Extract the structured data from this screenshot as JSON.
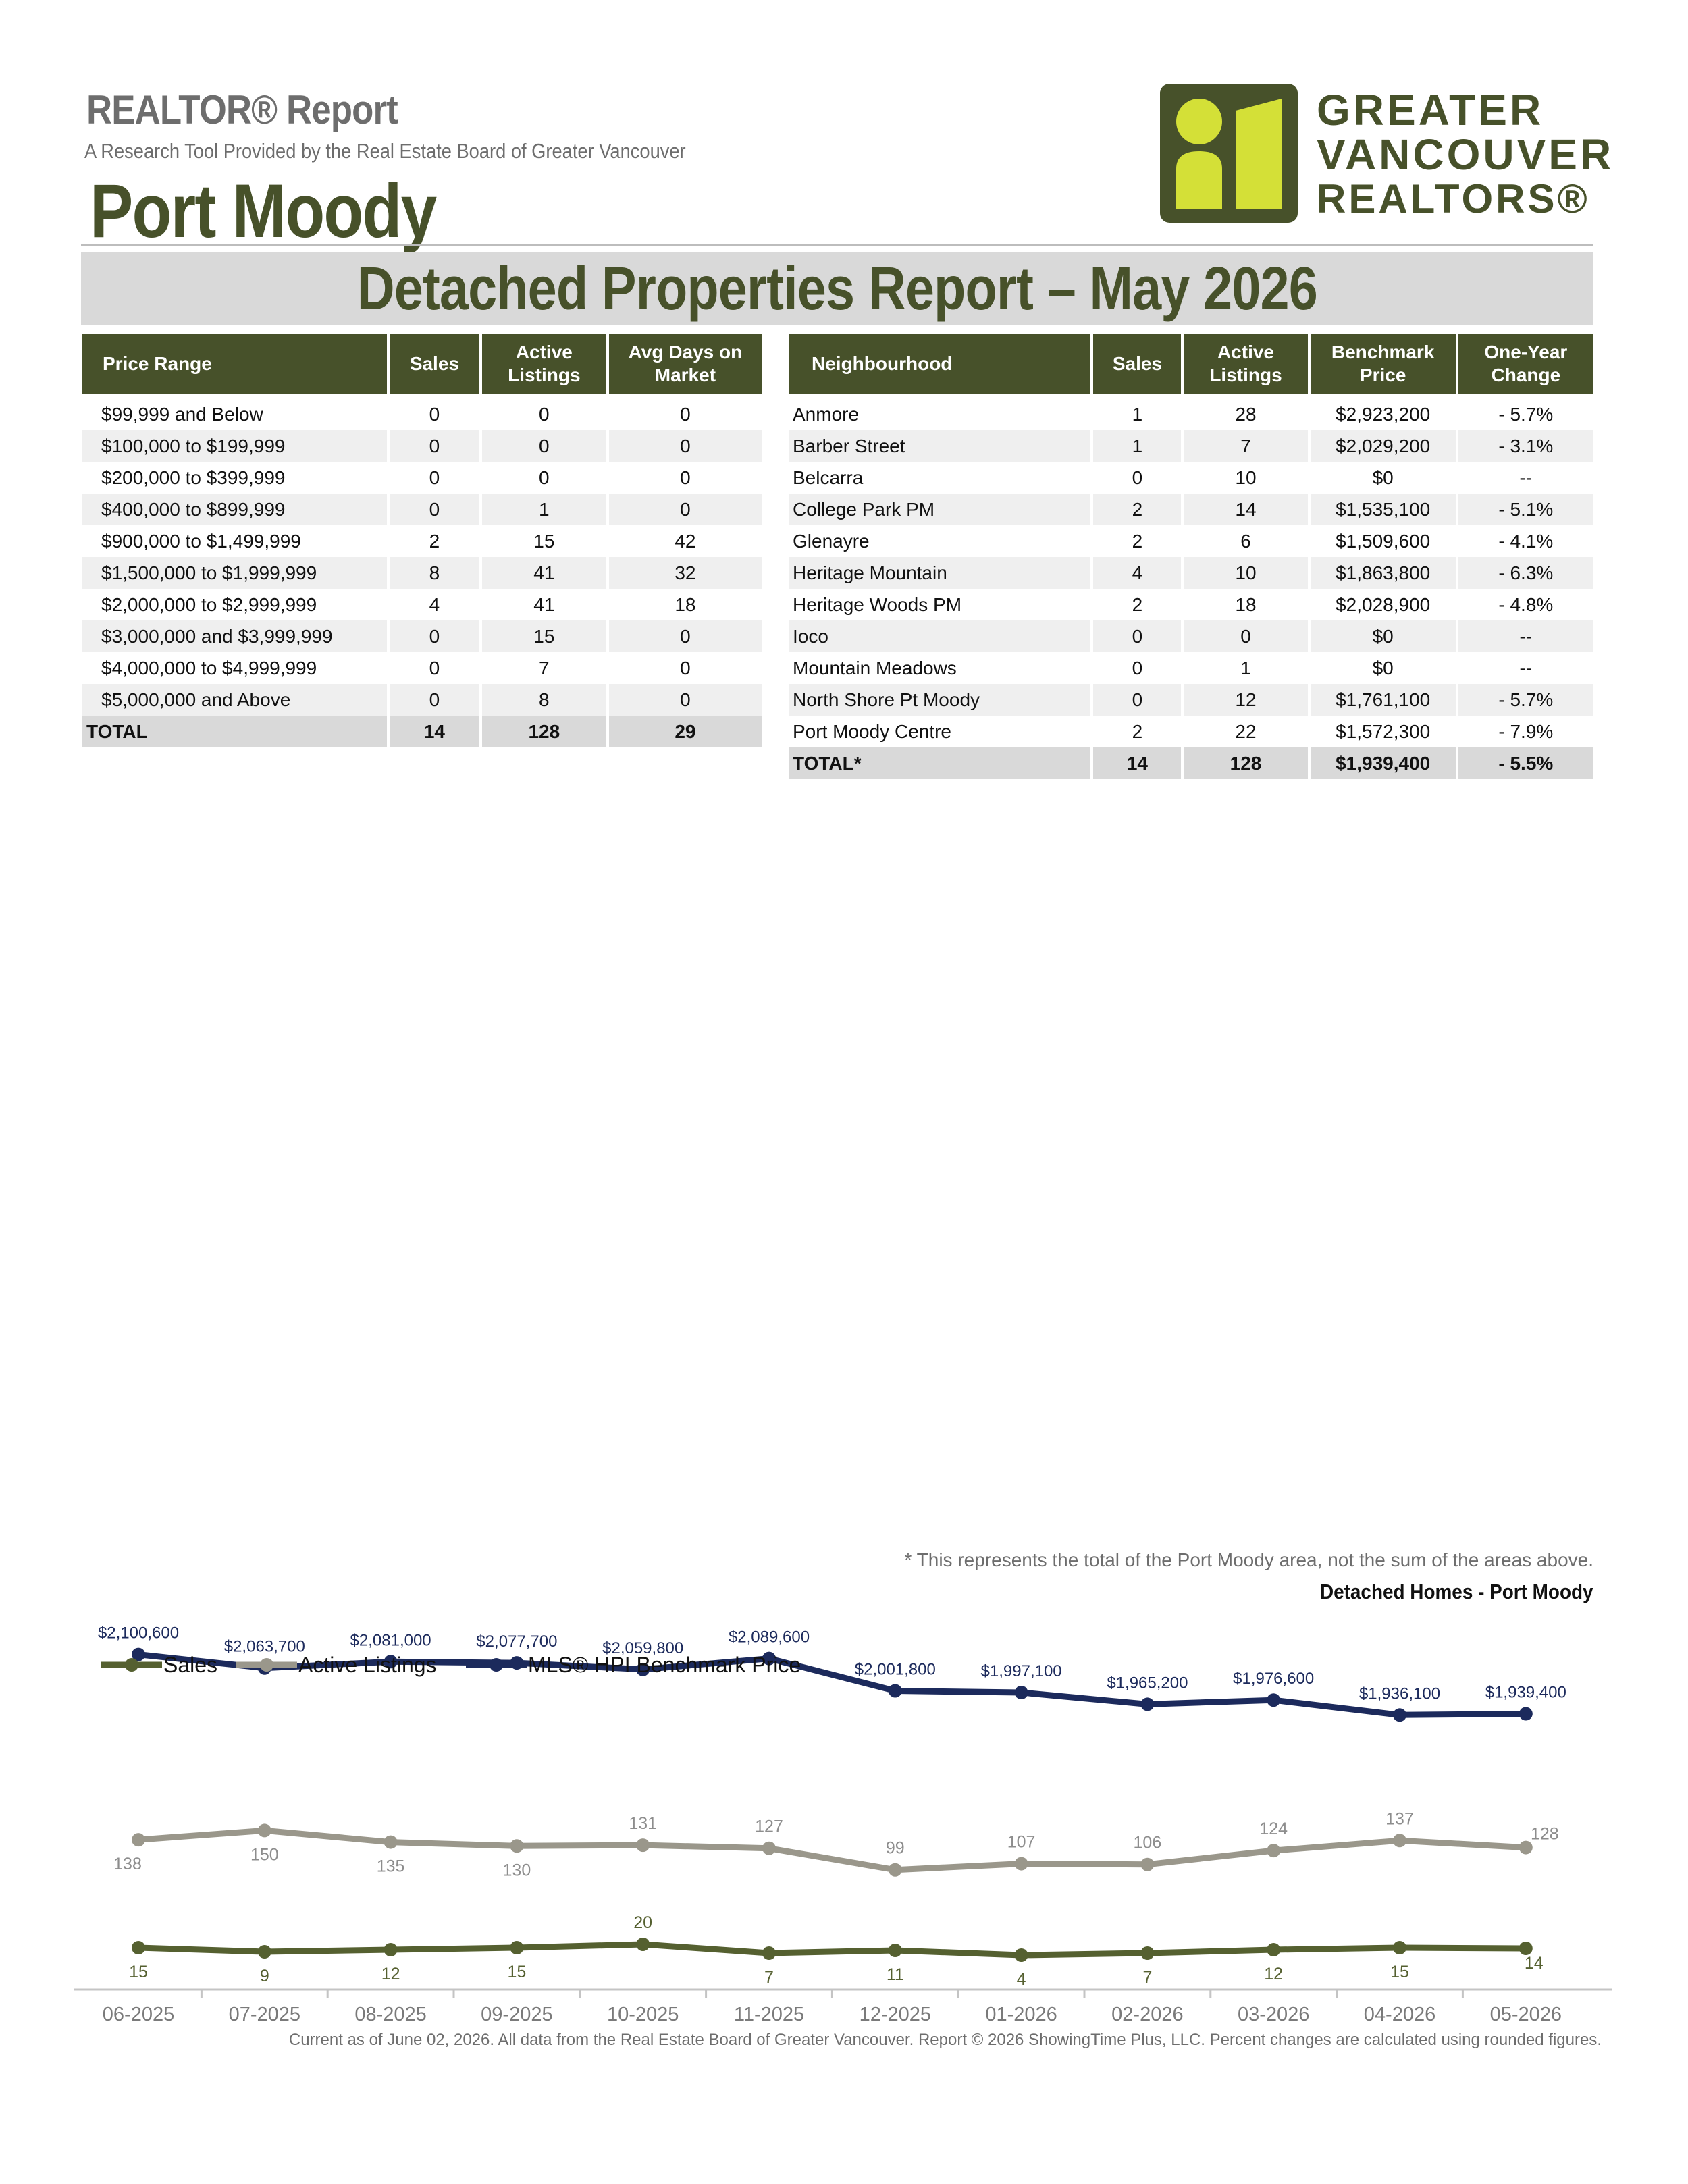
{
  "header": {
    "kicker": "REALTOR® Report",
    "subtitle": "A Research Tool Provided by the Real Estate Board of Greater Vancouver",
    "area": "Port Moody",
    "logo_text": [
      "GREATER",
      "VANCOUVER",
      "REALTORS®"
    ]
  },
  "banner": "Detached Properties Report – May 2026",
  "price_table": {
    "headers": [
      "Price Range",
      "Sales",
      "Active Listings",
      "Avg Days on Market"
    ],
    "rows": [
      [
        "$99,999 and Below",
        "0",
        "0",
        "0"
      ],
      [
        "$100,000 to $199,999",
        "0",
        "0",
        "0"
      ],
      [
        "$200,000 to $399,999",
        "0",
        "0",
        "0"
      ],
      [
        "$400,000 to $899,999",
        "0",
        "1",
        "0"
      ],
      [
        "$900,000 to $1,499,999",
        "2",
        "15",
        "42"
      ],
      [
        "$1,500,000 to $1,999,999",
        "8",
        "41",
        "32"
      ],
      [
        "$2,000,000 to $2,999,999",
        "4",
        "41",
        "18"
      ],
      [
        "$3,000,000 and $3,999,999",
        "0",
        "15",
        "0"
      ],
      [
        "$4,000,000 to $4,999,999",
        "0",
        "7",
        "0"
      ],
      [
        "$5,000,000 and Above",
        "0",
        "8",
        "0"
      ]
    ],
    "total": [
      "TOTAL",
      "14",
      "128",
      "29"
    ]
  },
  "neighbourhood_table": {
    "headers": [
      "Neighbourhood",
      "Sales",
      "Active Listings",
      "Benchmark Price",
      "One-Year Change"
    ],
    "rows": [
      [
        "Anmore",
        "1",
        "28",
        "$2,923,200",
        "- 5.7%"
      ],
      [
        "Barber Street",
        "1",
        "7",
        "$2,029,200",
        "- 3.1%"
      ],
      [
        "Belcarra",
        "0",
        "10",
        "$0",
        "--"
      ],
      [
        "College Park PM",
        "2",
        "14",
        "$1,535,100",
        "- 5.1%"
      ],
      [
        "Glenayre",
        "2",
        "6",
        "$1,509,600",
        "- 4.1%"
      ],
      [
        "Heritage Mountain",
        "4",
        "10",
        "$1,863,800",
        "- 6.3%"
      ],
      [
        "Heritage Woods PM",
        "2",
        "18",
        "$2,028,900",
        "- 4.8%"
      ],
      [
        "Ioco",
        "0",
        "0",
        "$0",
        "--"
      ],
      [
        "Mountain Meadows",
        "0",
        "1",
        "$0",
        "--"
      ],
      [
        "North Shore Pt Moody",
        "0",
        "12",
        "$1,761,100",
        "- 5.7%"
      ],
      [
        "Port Moody Centre",
        "2",
        "22",
        "$1,572,300",
        "- 7.9%"
      ]
    ],
    "total": [
      "TOTAL*",
      "14",
      "128",
      "$1,939,400",
      "- 5.5%"
    ]
  },
  "footnote": "* This represents the total of the Port Moody area, not the sum of the areas above.",
  "chart_title": "Detached Homes - Port Moody",
  "chart_data": {
    "type": "line",
    "title": "Detached Homes - Port Moody",
    "categories": [
      "06-2025",
      "07-2025",
      "08-2025",
      "09-2025",
      "10-2025",
      "11-2025",
      "12-2025",
      "01-2026",
      "02-2026",
      "03-2026",
      "04-2026",
      "05-2026"
    ],
    "legend_position": "top-left",
    "grid": false,
    "series": [
      {
        "name": "Sales",
        "color": "#556030",
        "labels": [
          "15",
          "9",
          "12",
          "15",
          "20",
          "7",
          "11",
          "4",
          "7",
          "12",
          "15",
          "14"
        ],
        "values": [
          15,
          9,
          12,
          15,
          20,
          7,
          11,
          4,
          7,
          12,
          15,
          14
        ]
      },
      {
        "name": "Active Listings",
        "color": "#9a978b",
        "labels": [
          "138",
          "150",
          "135",
          "130",
          "131",
          "127",
          "99",
          "107",
          "106",
          "124",
          "137",
          "128"
        ],
        "values": [
          138,
          150,
          135,
          130,
          131,
          127,
          99,
          107,
          106,
          124,
          137,
          128
        ]
      },
      {
        "name": "MLS® HPI Benchmark Price",
        "color": "#1c2a5c",
        "labels": [
          "$2,100,600",
          "$2,063,700",
          "$2,081,000",
          "$2,077,700",
          "$2,059,800",
          "$2,089,600",
          "$2,001,800",
          "$1,997,100",
          "$1,965,200",
          "$1,976,600",
          "$1,936,100",
          "$1,939,400"
        ],
        "values": [
          2100600,
          2063700,
          2081000,
          2077700,
          2059800,
          2089600,
          2001800,
          1997100,
          1965200,
          1976600,
          1936100,
          1939400
        ]
      }
    ]
  },
  "footer": "Current as of June 02, 2026. All data from the Real Estate Board of Greater Vancouver.  Report © 2026 ShowingTime Plus, LLC. Percent changes are calculated using rounded figures."
}
